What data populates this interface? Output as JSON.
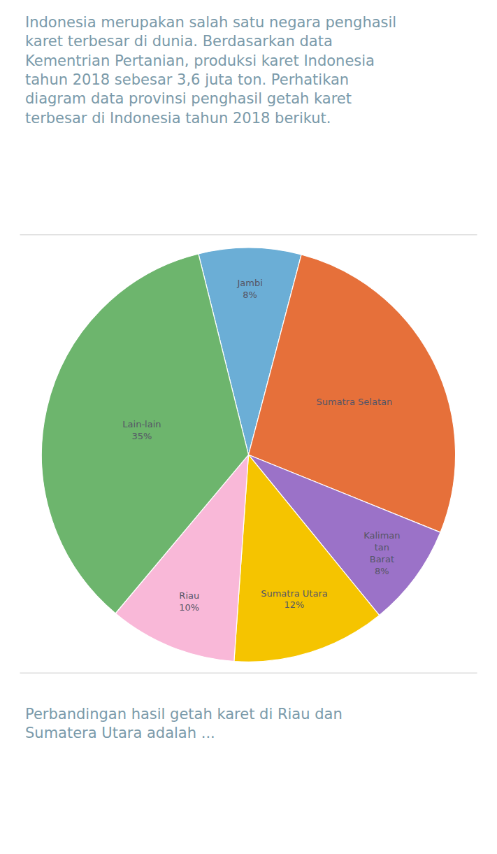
{
  "chart_data": {
    "type": "pie",
    "annotations": [
      "Indonesia merupakan salah satu negara penghasil\nkaret terbesar di dunia. Berdasarkan data\nKementrian Pertanian, produksi karet Indonesia\ntahun 2018 sebesar 3,6 juta ton. Perhatikan\ndiagram data provinsi penghasil getah karet\nterbesar di Indonesia tahun 2018 berikut.",
      "Perbandingan hasil getah karet di Riau dan\nSumatera Utara adalah ..."
    ],
    "categories": [
      "Jambi",
      "Sumatra Selatan",
      "Kaliman\ntan\nBarat",
      "Sumatra Utara",
      "Riau",
      "Lain-lain"
    ],
    "values": [
      8,
      27,
      8,
      12,
      10,
      35
    ],
    "value_labels": [
      "8%",
      null,
      "8%",
      "12%",
      "10%",
      "35%"
    ],
    "colors": [
      "#6baed6",
      "#e6703a",
      "#9b72c8",
      "#f5c400",
      "#f9b8d8",
      "#6db56d"
    ],
    "data_labels": true,
    "legend": false
  }
}
